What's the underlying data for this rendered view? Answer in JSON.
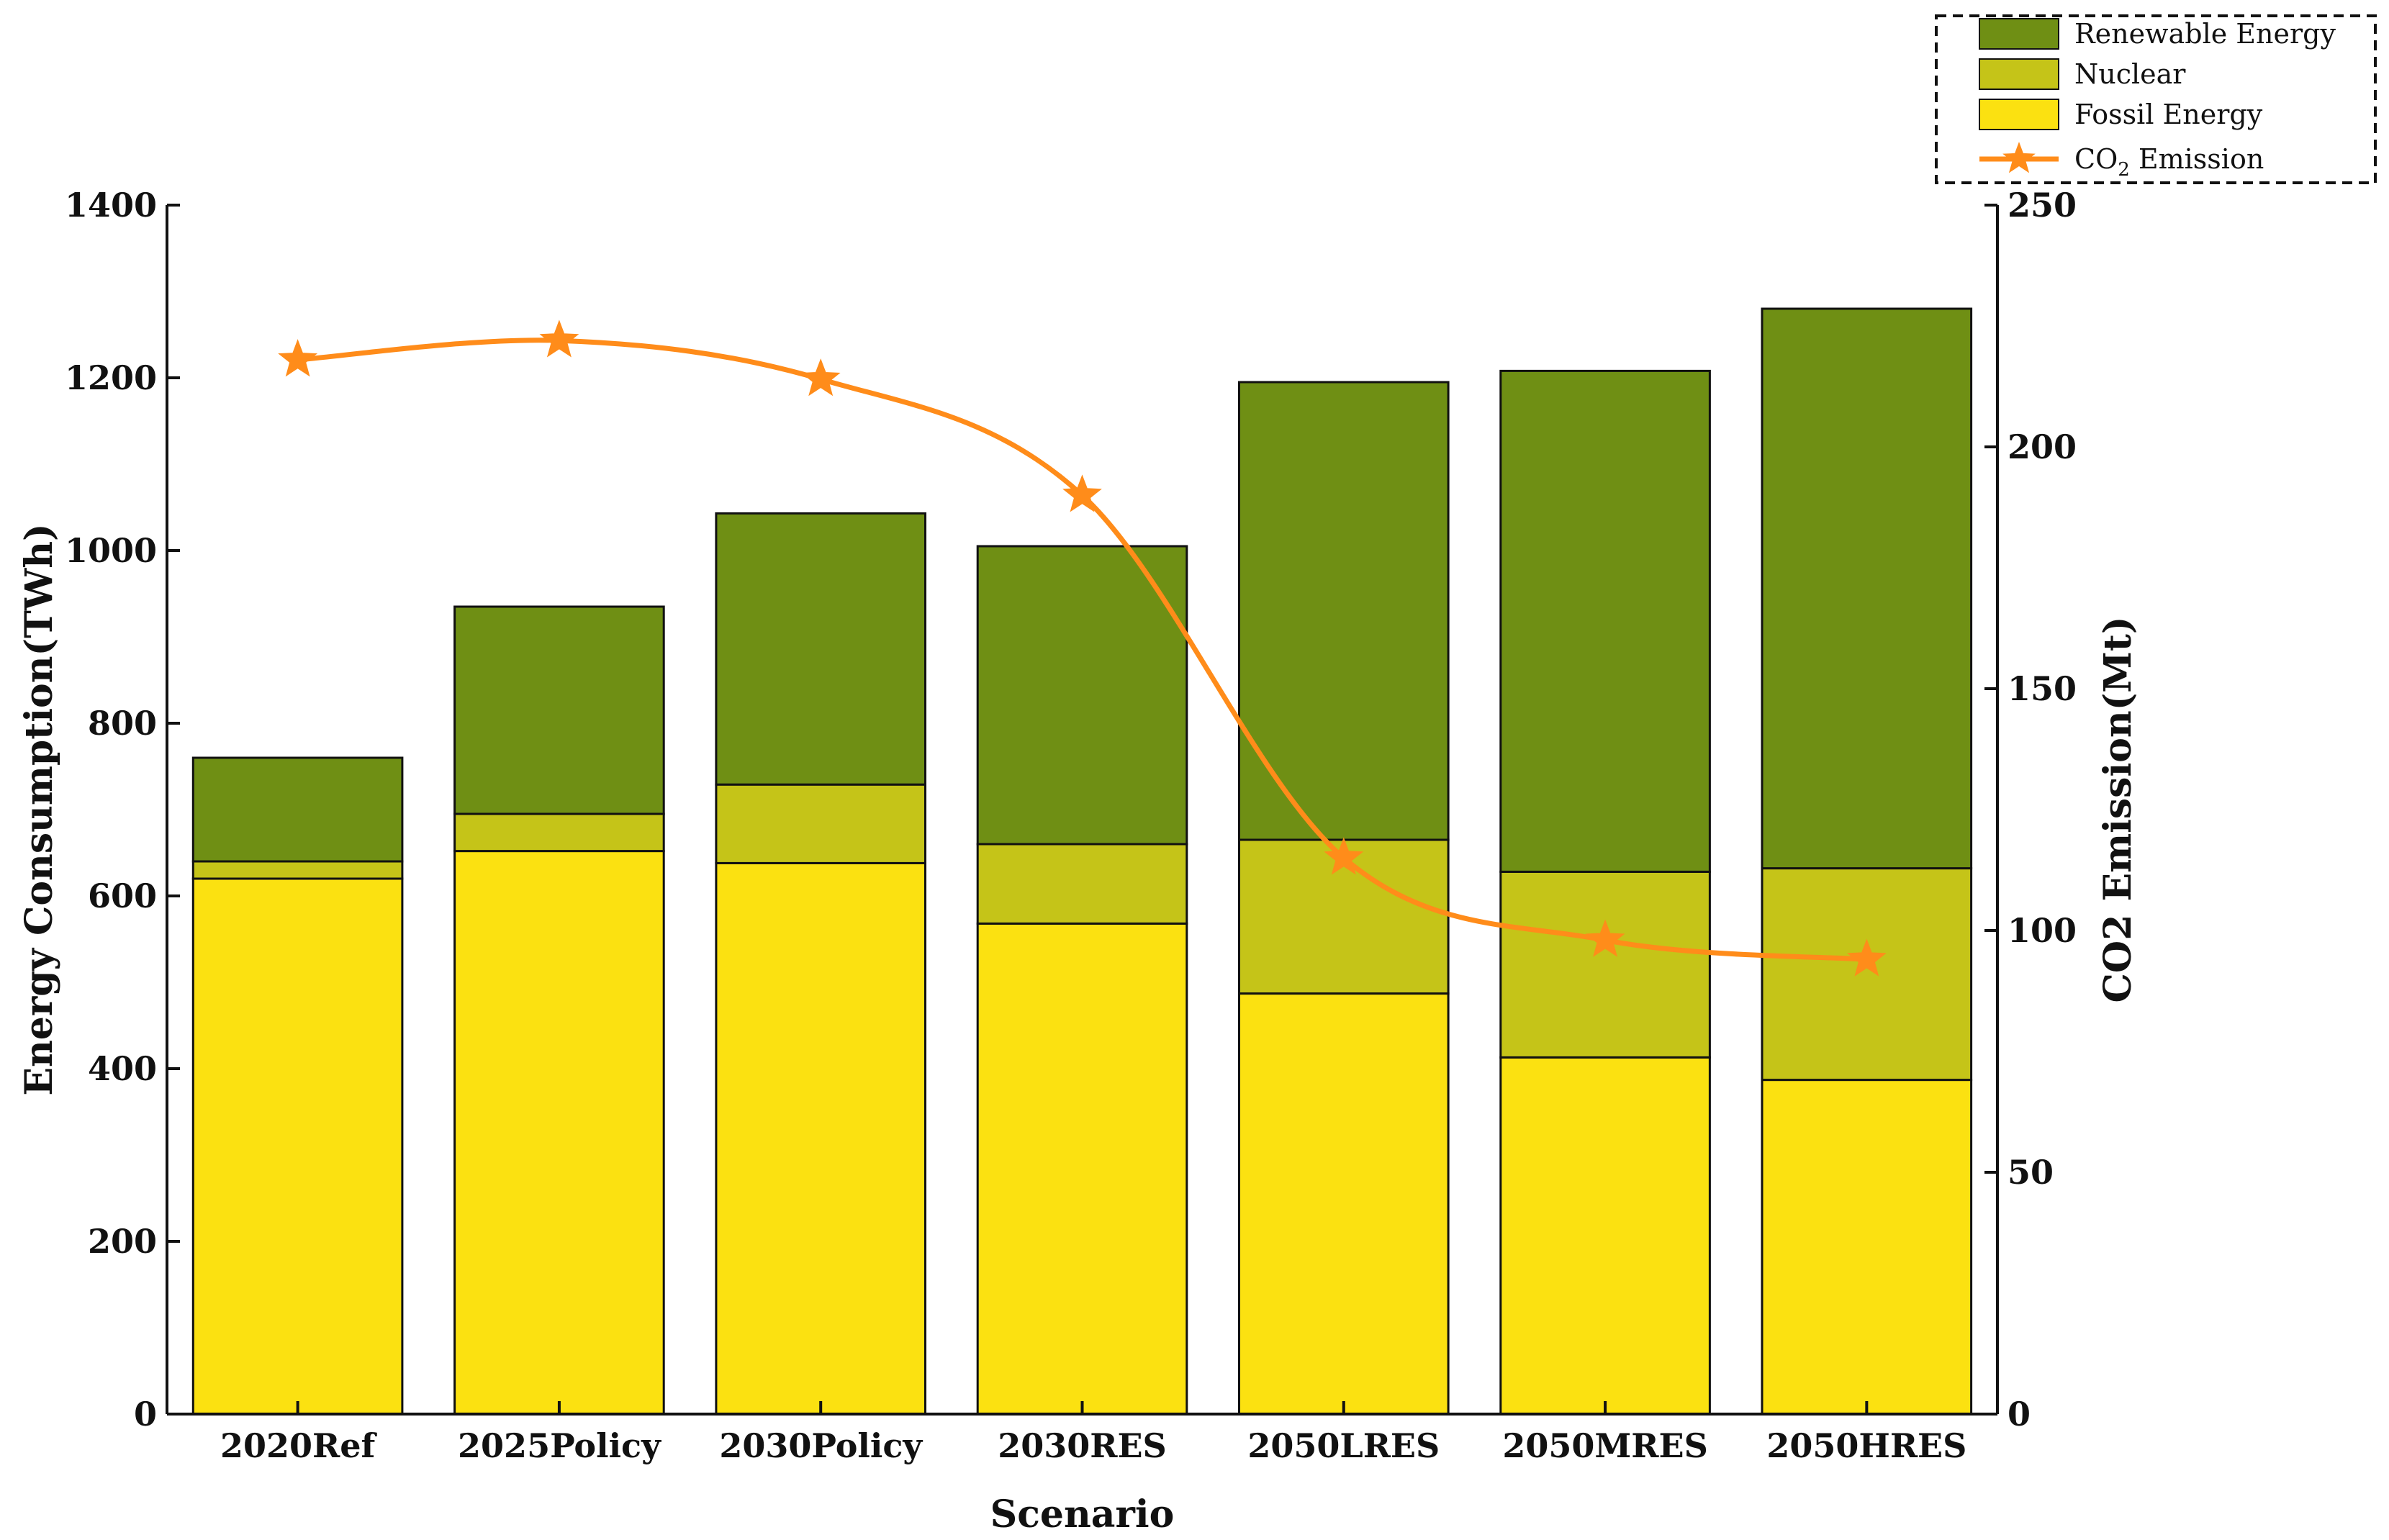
{
  "chart_data": {
    "type": "bar",
    "stacked": true,
    "categories": [
      "2020Ref",
      "2025Policy",
      "2030Policy",
      "2030RES",
      "2050LRES",
      "2050MRES",
      "2050HRES"
    ],
    "series": [
      {
        "name": "Fossil Energy",
        "axis": "left",
        "color": "#fbe111",
        "values": [
          620,
          652,
          638,
          568,
          487,
          413,
          387
        ]
      },
      {
        "name": "Nuclear",
        "axis": "left",
        "color": "#c5c418",
        "values": [
          20,
          43,
          91,
          92,
          178,
          215,
          245
        ]
      },
      {
        "name": "Renewable Energy",
        "axis": "left",
        "color": "#6f8f14",
        "values": [
          120,
          240,
          314,
          345,
          530,
          580,
          648
        ]
      }
    ],
    "line_series": {
      "name": "CO2 Emission",
      "legend_text": "CO",
      "legend_sub": "2",
      "legend_suffix": " Emission",
      "axis": "right",
      "color": "#ff8c1a",
      "marker": "star",
      "values": [
        218,
        222,
        214,
        190,
        115,
        98,
        94
      ]
    },
    "xlabel": "Scenario",
    "ylabel": "Energy Consumption(TWh)",
    "y2label": "CO2 Emission(Mt)",
    "ylim": [
      0,
      1400
    ],
    "y2lim": [
      0,
      250
    ],
    "yticks": [
      0,
      200,
      400,
      600,
      800,
      1000,
      1200,
      1400
    ],
    "y2ticks": [
      0,
      50,
      100,
      150,
      200,
      250
    ],
    "legend": {
      "position": "top-right",
      "entries": [
        "Renewable Energy",
        "Nuclear",
        "Fossil Energy",
        "CO2 Emission"
      ]
    },
    "grid": false
  }
}
